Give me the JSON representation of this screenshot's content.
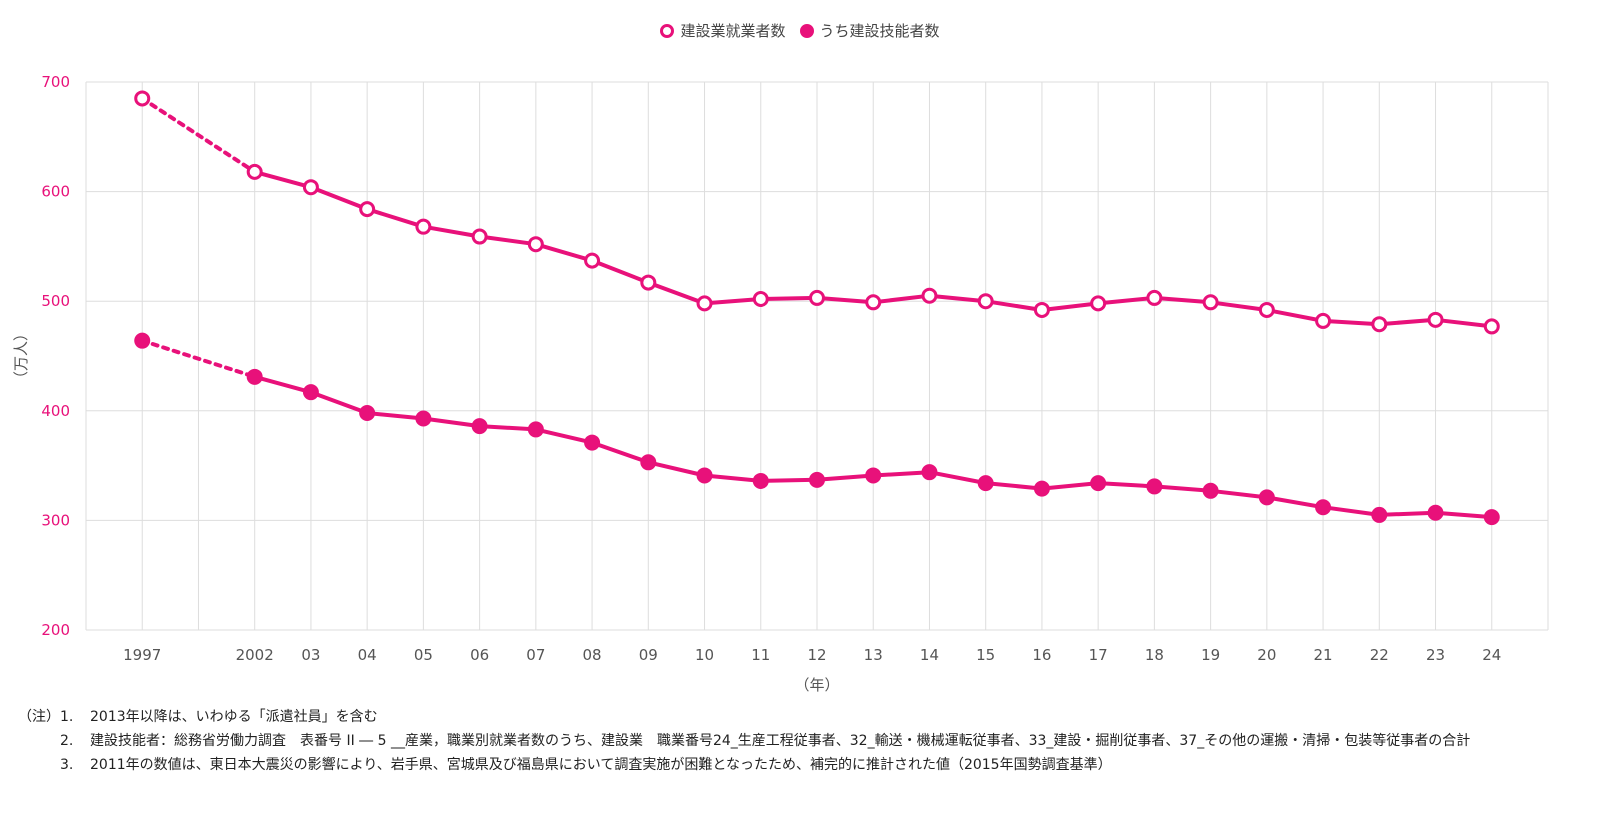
{
  "legend": {
    "series1": "建設業就業者数",
    "series2": "うち建設技能者数"
  },
  "notes": {
    "prefix": "（注）",
    "items": [
      {
        "num": "1.",
        "text": "2013年以降は、いわゆる「派遣社員」を含む"
      },
      {
        "num": "2.",
        "text": "建設技能者：総務省労働力調査　表番号 II ― 5 __産業，職業別就業者数のうち、建設業　職業番号24_生産工程従事者、32_輸送・機械運転従事者、33_建設・掘削従事者、37_その他の運搬・清掃・包装等従事者の合計"
      },
      {
        "num": "3.",
        "text": "2011年の数値は、東日本大震災の影響により、岩手県、宮城県及び福島県において調査実施が困難となったため、補完的に推計された値（2015年国勢調査基準）"
      }
    ]
  },
  "colors": {
    "accent": "#E8117A",
    "grid": "#dddddd",
    "tick_text": "#E8117A",
    "axis_text": "#555555"
  },
  "chart_data": {
    "type": "line",
    "xlabel": "（年）",
    "ylabel": "（万人）",
    "ylim": [
      200,
      700
    ],
    "yticks": [
      200,
      300,
      400,
      500,
      600,
      700
    ],
    "grid": true,
    "legend_position": "top-center",
    "categories": [
      "1997",
      "",
      "2002",
      "03",
      "04",
      "05",
      "06",
      "07",
      "08",
      "09",
      "10",
      "11",
      "12",
      "13",
      "14",
      "15",
      "16",
      "17",
      "18",
      "19",
      "20",
      "21",
      "22",
      "23",
      "24"
    ],
    "series": [
      {
        "name": "建設業就業者数",
        "marker": "open-circle",
        "values": [
          685,
          null,
          618,
          604,
          584,
          568,
          559,
          552,
          537,
          517,
          498,
          502,
          503,
          499,
          505,
          500,
          492,
          498,
          503,
          499,
          492,
          482,
          479,
          483,
          477
        ]
      },
      {
        "name": "うち建設技能者数",
        "marker": "filled-circle",
        "values": [
          464,
          null,
          431,
          417,
          398,
          393,
          386,
          383,
          371,
          353,
          341,
          336,
          337,
          341,
          344,
          334,
          329,
          334,
          331,
          327,
          321,
          312,
          305,
          307,
          303
        ]
      }
    ],
    "dashed_segment": "1997 – 2002"
  }
}
